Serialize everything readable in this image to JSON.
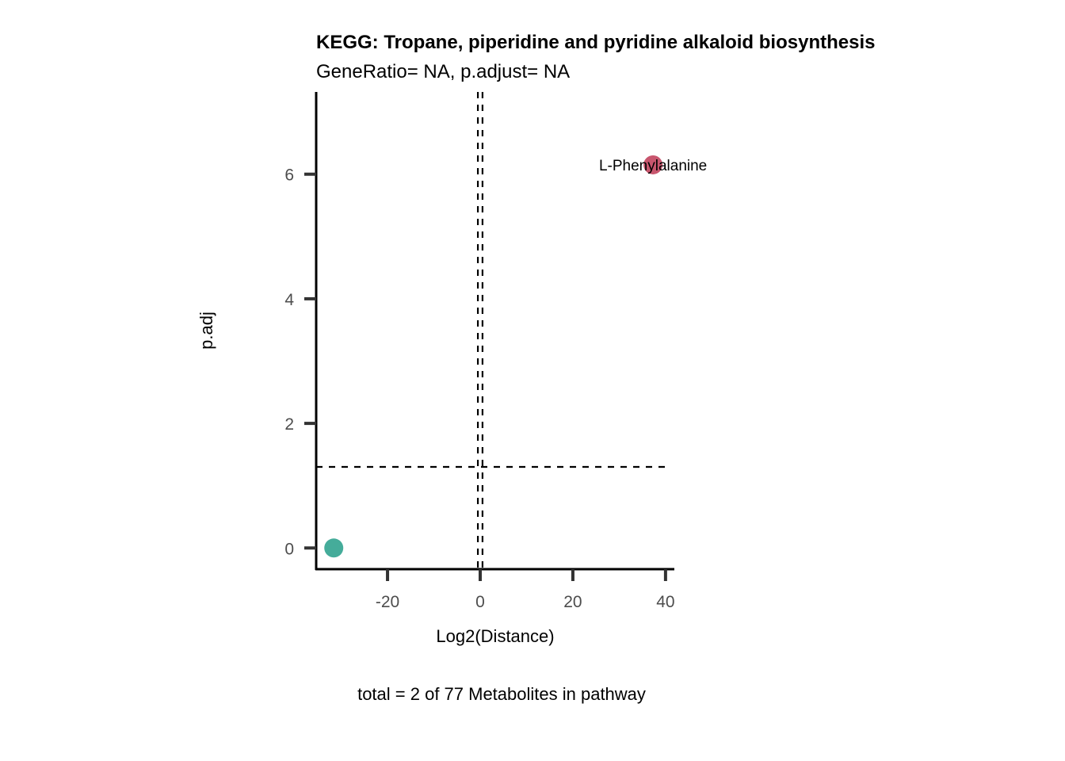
{
  "chart_data": {
    "type": "scatter",
    "title": "KEGG: Tropane, piperidine and pyridine alkaloid biosynthesis",
    "subtitle": "GeneRatio= NA, p.adjust= NA",
    "xlabel": "Log2(Distance)",
    "ylabel": "p.adj",
    "caption": "total = 2 of 77 Metabolites in pathway",
    "xlim": [
      -35.4,
      41.9
    ],
    "ylim": [
      -0.34,
      7.32
    ],
    "xticks": [
      -20,
      0,
      20,
      40
    ],
    "yticks": [
      0,
      2,
      4,
      6
    ],
    "grid": false,
    "points": [
      {
        "x": -31.6,
        "y": 0,
        "label": "",
        "color": "#45AC9A"
      },
      {
        "x": 37.3,
        "y": 6.15,
        "label": "L-Phenylalanine",
        "color": "#C8566E"
      }
    ],
    "hlines": [
      1.301
    ],
    "vlines": [
      -0.5,
      0.5
    ]
  }
}
